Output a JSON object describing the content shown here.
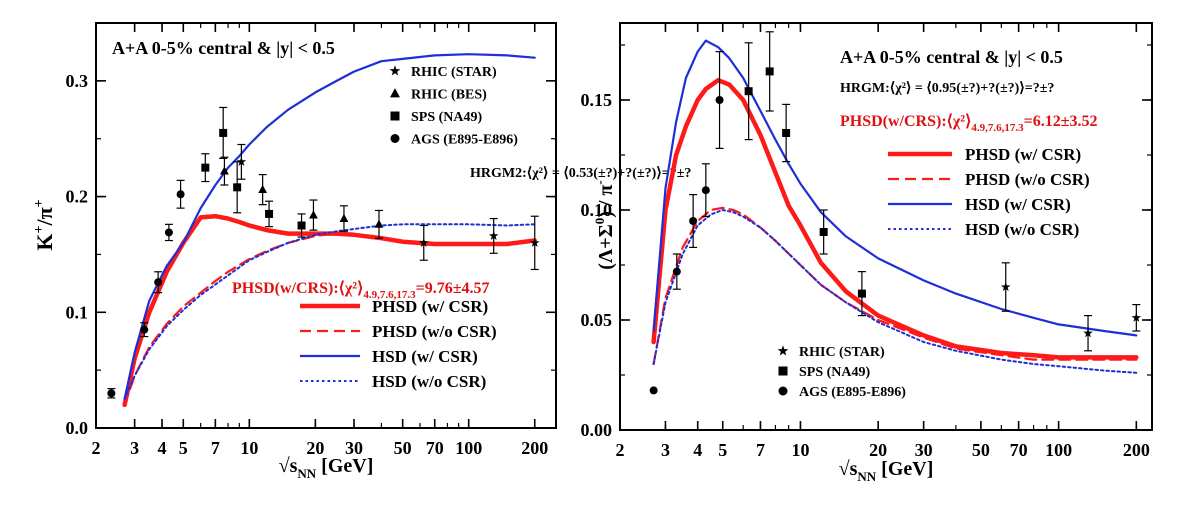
{
  "chart_data": [
    {
      "type": "line",
      "title": "A+A 0-5% central & |y| < 0.5",
      "xlabel": "√s_NN [GeV]",
      "ylabel": "K+/π+",
      "xscale": "log",
      "xlim": [
        2,
        250
      ],
      "ylim": [
        0,
        0.35
      ],
      "xticks": [
        2,
        3,
        4,
        5,
        7,
        10,
        20,
        30,
        50,
        70,
        100,
        200
      ],
      "xtick_labels": [
        "2",
        "3",
        "4",
        "5",
        "7",
        "10",
        "20",
        "30",
        "50",
        "70",
        "100",
        "200"
      ],
      "yticks": [
        0,
        0.1,
        0.2,
        0.3
      ],
      "ytick_labels": [
        "0.0",
        "0.1",
        "0.2",
        "0.3"
      ],
      "hrgm_text": "HRGM2:⟨χ²⟩ = ⟨0.53(±?)+?(±?)⟩=?±?",
      "phsd_text": {
        "main": "PHSD(w/CRS):⟨χ²⟩",
        "sub": "4.9,7.6,17.3",
        "tail": "=9.76±4.57"
      },
      "series": [
        {
          "name": "PHSD (w/ CSR)",
          "style": "thick-solid",
          "color": "#ff1a1a",
          "x": [
            2.7,
            3.0,
            3.5,
            4.2,
            5.0,
            6.0,
            7.0,
            8.0,
            9.0,
            10,
            12,
            15,
            20,
            25,
            30,
            40,
            50,
            70,
            100,
            150,
            200
          ],
          "y": [
            0.02,
            0.06,
            0.1,
            0.135,
            0.16,
            0.182,
            0.183,
            0.181,
            0.178,
            0.175,
            0.171,
            0.168,
            0.168,
            0.168,
            0.167,
            0.164,
            0.161,
            0.159,
            0.159,
            0.159,
            0.162
          ]
        },
        {
          "name": "PHSD (w/o CSR)",
          "style": "dashed",
          "color": "#ff1a1a",
          "x": [
            2.7,
            3.0,
            3.5,
            4.2,
            5.0,
            6.0,
            7.0,
            8.0,
            10,
            12,
            15,
            20,
            25,
            30,
            40,
            50,
            70,
            100,
            150,
            200
          ],
          "y": [
            0.02,
            0.045,
            0.07,
            0.09,
            0.105,
            0.117,
            0.127,
            0.135,
            0.146,
            0.153,
            0.16,
            0.166,
            0.168,
            0.167,
            0.164,
            0.161,
            0.159,
            0.159,
            0.16,
            0.162
          ]
        },
        {
          "name": "HSD (w/ CSR)",
          "style": "solid",
          "color": "#1f2fd6",
          "x": [
            2.7,
            3.0,
            3.5,
            4.2,
            5.0,
            6.0,
            7.0,
            8.0,
            9.0,
            10,
            12,
            15,
            20,
            25,
            30,
            40,
            50,
            70,
            100,
            150,
            200
          ],
          "y": [
            0.025,
            0.065,
            0.11,
            0.14,
            0.16,
            0.19,
            0.21,
            0.225,
            0.235,
            0.245,
            0.26,
            0.275,
            0.29,
            0.3,
            0.308,
            0.317,
            0.319,
            0.322,
            0.323,
            0.322,
            0.32
          ]
        },
        {
          "name": "HSD (w/o CSR)",
          "style": "dotted",
          "color": "#1f2fd6",
          "x": [
            2.7,
            3.0,
            3.5,
            4.2,
            5.0,
            6.0,
            7.0,
            8.0,
            10,
            12,
            15,
            20,
            25,
            30,
            40,
            50,
            70,
            100,
            150,
            200
          ],
          "y": [
            0.025,
            0.045,
            0.068,
            0.088,
            0.102,
            0.115,
            0.124,
            0.132,
            0.145,
            0.152,
            0.16,
            0.167,
            0.17,
            0.172,
            0.175,
            0.176,
            0.176,
            0.176,
            0.175,
            0.176
          ]
        }
      ],
      "data_sets": [
        {
          "name": "RHIC (STAR)",
          "marker": "star",
          "points": [
            {
              "x": 9.2,
              "y": 0.23,
              "err": 0.015
            },
            {
              "x": 62.4,
              "y": 0.16,
              "err": 0.015
            },
            {
              "x": 130,
              "y": 0.166,
              "err": 0.015
            },
            {
              "x": 200,
              "y": 0.16,
              "err": 0.023
            }
          ]
        },
        {
          "name": "RHIC (BES)",
          "marker": "triangle",
          "points": [
            {
              "x": 7.7,
              "y": 0.222,
              "err": 0.012
            },
            {
              "x": 11.5,
              "y": 0.206,
              "err": 0.013
            },
            {
              "x": 19.6,
              "y": 0.184,
              "err": 0.013
            },
            {
              "x": 27,
              "y": 0.181,
              "err": 0.011
            },
            {
              "x": 39,
              "y": 0.176,
              "err": 0.012
            }
          ]
        },
        {
          "name": "SPS (NA49)",
          "marker": "square",
          "points": [
            {
              "x": 6.3,
              "y": 0.225,
              "err": 0.012
            },
            {
              "x": 7.6,
              "y": 0.255,
              "err": 0.022
            },
            {
              "x": 8.8,
              "y": 0.208,
              "err": 0.022
            },
            {
              "x": 12.3,
              "y": 0.185,
              "err": 0.011
            },
            {
              "x": 17.3,
              "y": 0.175,
              "err": 0.01
            }
          ]
        },
        {
          "name": "AGS (E895-E896)",
          "marker": "circle",
          "points": [
            {
              "x": 2.35,
              "y": 0.03,
              "err": 0.004
            },
            {
              "x": 3.32,
              "y": 0.085,
              "err": 0.006
            },
            {
              "x": 3.84,
              "y": 0.126,
              "err": 0.009
            },
            {
              "x": 4.3,
              "y": 0.169,
              "err": 0.007
            },
            {
              "x": 4.86,
              "y": 0.202,
              "err": 0.012
            }
          ]
        }
      ]
    },
    {
      "type": "line",
      "title": "A+A 0-5% central & |y| < 0.5",
      "xlabel": "√s_NN [GeV]",
      "ylabel": "(Λ+Σ⁰) / π⁻",
      "xscale": "log",
      "xlim": [
        2,
        230
      ],
      "ylim": [
        0,
        0.185
      ],
      "xticks": [
        2,
        3,
        4,
        5,
        7,
        10,
        20,
        30,
        50,
        70,
        100,
        200
      ],
      "xtick_labels": [
        "2",
        "3",
        "4",
        "5",
        "7",
        "10",
        "20",
        "30",
        "50",
        "70",
        "100",
        "200"
      ],
      "yticks": [
        0,
        0.05,
        0.1,
        0.15
      ],
      "ytick_labels": [
        "0.00",
        "0.05",
        "0.10",
        "0.15"
      ],
      "hrgm_text": "HRGM:⟨χ²⟩ = ⟨0.95(±?)+?(±?)⟩=?±?",
      "phsd_text": {
        "main": "PHSD(w/CRS):⟨χ²⟩",
        "sub": "4.9,7.6,17.3",
        "tail": "=6.12±3.52"
      },
      "series": [
        {
          "name": "PHSD (w/ CSR)",
          "style": "thick-solid",
          "color": "#ff1a1a",
          "x": [
            2.7,
            3.0,
            3.3,
            3.6,
            4.0,
            4.3,
            4.8,
            5.3,
            6.0,
            7.0,
            8.0,
            9.0,
            10,
            12,
            15,
            20,
            30,
            40,
            60,
            80,
            100,
            150,
            200
          ],
          "y": [
            0.04,
            0.1,
            0.125,
            0.138,
            0.15,
            0.155,
            0.159,
            0.157,
            0.15,
            0.134,
            0.117,
            0.102,
            0.093,
            0.076,
            0.063,
            0.052,
            0.043,
            0.038,
            0.035,
            0.034,
            0.033,
            0.033,
            0.033
          ]
        },
        {
          "name": "PHSD (w/o CSR)",
          "style": "dashed",
          "color": "#ff1a1a",
          "x": [
            2.7,
            3.0,
            3.5,
            4.0,
            4.5,
            5.0,
            5.5,
            6.0,
            7.0,
            8.0,
            10,
            12,
            15,
            20,
            30,
            40,
            60,
            80,
            100,
            150,
            200
          ],
          "y": [
            0.03,
            0.06,
            0.083,
            0.095,
            0.1,
            0.101,
            0.1,
            0.098,
            0.092,
            0.086,
            0.075,
            0.066,
            0.058,
            0.05,
            0.042,
            0.037,
            0.034,
            0.032,
            0.032,
            0.032,
            0.032
          ]
        },
        {
          "name": "HSD (w/ CSR)",
          "style": "solid",
          "color": "#1f2fd6",
          "x": [
            2.7,
            3.0,
            3.3,
            3.6,
            4.0,
            4.3,
            4.8,
            5.3,
            6.0,
            7.0,
            8.0,
            9.0,
            10,
            12,
            15,
            20,
            30,
            40,
            60,
            80,
            100,
            150,
            200
          ],
          "y": [
            0.045,
            0.11,
            0.14,
            0.16,
            0.172,
            0.177,
            0.174,
            0.169,
            0.16,
            0.145,
            0.132,
            0.121,
            0.112,
            0.099,
            0.088,
            0.078,
            0.068,
            0.062,
            0.055,
            0.051,
            0.048,
            0.045,
            0.043
          ]
        },
        {
          "name": "HSD (w/o CSR)",
          "style": "dotted",
          "color": "#1f2fd6",
          "x": [
            2.7,
            3.0,
            3.5,
            4.0,
            4.5,
            5.0,
            5.5,
            6.0,
            7.0,
            8.0,
            10,
            12,
            15,
            20,
            30,
            40,
            60,
            80,
            100,
            150,
            200
          ],
          "y": [
            0.03,
            0.058,
            0.08,
            0.093,
            0.098,
            0.1,
            0.099,
            0.097,
            0.092,
            0.086,
            0.075,
            0.066,
            0.058,
            0.049,
            0.04,
            0.036,
            0.032,
            0.03,
            0.029,
            0.027,
            0.026
          ]
        }
      ],
      "data_sets": [
        {
          "name": "RHIC (STAR)",
          "marker": "star",
          "points": [
            {
              "x": 62.4,
              "y": 0.065,
              "err": 0.011
            },
            {
              "x": 130,
              "y": 0.044,
              "err": 0.008
            },
            {
              "x": 200,
              "y": 0.051,
              "err": 0.006
            }
          ]
        },
        {
          "name": "SPS (NA49)",
          "marker": "square",
          "points": [
            {
              "x": 6.3,
              "y": 0.154,
              "err": 0.022
            },
            {
              "x": 7.6,
              "y": 0.163,
              "err": 0.018
            },
            {
              "x": 8.8,
              "y": 0.135,
              "err": 0.013
            },
            {
              "x": 12.3,
              "y": 0.09,
              "err": 0.01
            },
            {
              "x": 17.3,
              "y": 0.062,
              "err": 0.01
            }
          ]
        },
        {
          "name": "AGS (E895-E896)",
          "marker": "circle",
          "points": [
            {
              "x": 2.7,
              "y": 0.018,
              "err": 0
            },
            {
              "x": 3.32,
              "y": 0.072,
              "err": 0.008
            },
            {
              "x": 3.84,
              "y": 0.095,
              "err": 0.012
            },
            {
              "x": 4.3,
              "y": 0.109,
              "err": 0.012
            },
            {
              "x": 4.86,
              "y": 0.15,
              "err": 0.022
            }
          ]
        }
      ]
    }
  ]
}
